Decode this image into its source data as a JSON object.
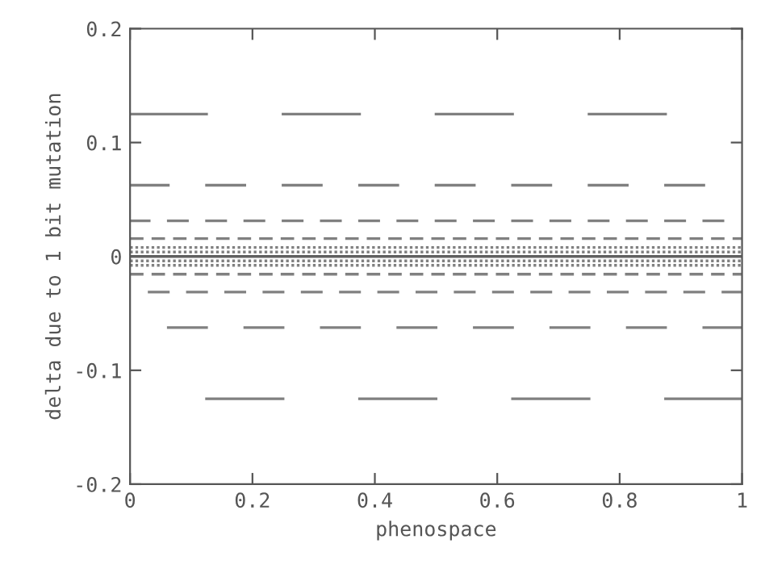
{
  "chart_data": {
    "type": "line",
    "xlabel": "phenospace",
    "ylabel": "delta due to 1 bit mutation",
    "xlim": [
      0,
      1
    ],
    "ylim": [
      -0.2,
      0.2
    ],
    "xticks": [
      0,
      0.2,
      0.4,
      0.6,
      0.8,
      1
    ],
    "yticks": [
      {
        "value": -0.2,
        "label": "-0.2"
      },
      {
        "value": -0.1,
        "label": "-0.1"
      },
      0,
      0.1,
      0.2
    ],
    "grid": false,
    "marker": "none",
    "series": [
      {
        "color": "#808080",
        "line_style": "solid",
        "x": [
          0,
          0.125,
          0.1875,
          0.25,
          0.375,
          0.4375,
          0.5,
          0.625,
          0.6875,
          0.75,
          0.875
        ],
        "values": [
          0.125,
          0.125,
          null,
          0.125,
          0.125,
          null,
          0.125,
          0.125,
          null,
          0.125,
          0.125
        ]
      },
      {
        "color": "#808080",
        "line_style": "solid",
        "x": [
          0.125,
          0.25,
          0.3125,
          0.375,
          0.5,
          0.5625,
          0.625,
          0.75,
          0.8125,
          0.875,
          1
        ],
        "values": [
          -0.125,
          -0.125,
          null,
          -0.125,
          -0.125,
          null,
          -0.125,
          -0.125,
          null,
          -0.125,
          -0.125
        ]
      },
      {
        "color": "#808080",
        "line_style": "solid",
        "x": [
          0,
          0.0625,
          0.09375,
          0.125,
          0.1875,
          0.21875,
          0.25,
          0.3125,
          0.34375,
          0.375,
          0.4375,
          0.46875,
          0.5,
          0.5625,
          0.59375,
          0.625,
          0.6875,
          0.71875,
          0.75,
          0.8125,
          0.84375,
          0.875,
          0.9375
        ],
        "values": [
          0.0625,
          0.0625,
          null,
          0.0625,
          0.0625,
          null,
          0.0625,
          0.0625,
          null,
          0.0625,
          0.0625,
          null,
          0.0625,
          0.0625,
          null,
          0.0625,
          0.0625,
          null,
          0.0625,
          0.0625,
          null,
          0.0625,
          0.0625
        ]
      },
      {
        "color": "#808080",
        "line_style": "solid",
        "x": [
          0.0625,
          0.125,
          0.15625,
          0.1875,
          0.25,
          0.28125,
          0.3125,
          0.375,
          0.40625,
          0.4375,
          0.5,
          0.53125,
          0.5625,
          0.625,
          0.65625,
          0.6875,
          0.75,
          0.78125,
          0.8125,
          0.875,
          0.90625,
          0.9375,
          1
        ],
        "values": [
          -0.0625,
          -0.0625,
          null,
          -0.0625,
          -0.0625,
          null,
          -0.0625,
          -0.0625,
          null,
          -0.0625,
          -0.0625,
          null,
          -0.0625,
          -0.0625,
          null,
          -0.0625,
          -0.0625,
          null,
          -0.0625,
          -0.0625,
          null,
          -0.0625,
          -0.0625
        ]
      },
      {
        "color": "#808080",
        "line_style": "solid",
        "x": [
          0,
          0.03125,
          0.046875,
          0.0625,
          0.09375,
          0.109375,
          0.125,
          0.15625,
          0.171875,
          0.1875,
          0.21875,
          0.234375,
          0.25,
          0.28125,
          0.296875,
          0.3125,
          0.34375,
          0.359375,
          0.375,
          0.40625,
          0.421875,
          0.4375,
          0.46875,
          0.484375,
          0.5,
          0.53125,
          0.546875,
          0.5625,
          0.59375,
          0.609375,
          0.625,
          0.65625,
          0.671875,
          0.6875,
          0.71875,
          0.734375,
          0.75,
          0.78125,
          0.796875,
          0.8125,
          0.84375,
          0.859375,
          0.875,
          0.90625,
          0.921875,
          0.9375,
          0.96875
        ],
        "values": [
          0.03125,
          0.03125,
          null,
          0.03125,
          0.03125,
          null,
          0.03125,
          0.03125,
          null,
          0.03125,
          0.03125,
          null,
          0.03125,
          0.03125,
          null,
          0.03125,
          0.03125,
          null,
          0.03125,
          0.03125,
          null,
          0.03125,
          0.03125,
          null,
          0.03125,
          0.03125,
          null,
          0.03125,
          0.03125,
          null,
          0.03125,
          0.03125,
          null,
          0.03125,
          0.03125,
          null,
          0.03125,
          0.03125,
          null,
          0.03125,
          0.03125,
          null,
          0.03125,
          0.03125,
          null,
          0.03125,
          0.03125
        ]
      },
      {
        "color": "#808080",
        "line_style": "solid",
        "x": [
          0.03125,
          0.0625,
          0.078125,
          0.09375,
          0.125,
          0.140625,
          0.15625,
          0.1875,
          0.203125,
          0.21875,
          0.25,
          0.265625,
          0.28125,
          0.3125,
          0.328125,
          0.34375,
          0.375,
          0.390625,
          0.40625,
          0.4375,
          0.453125,
          0.46875,
          0.5,
          0.515625,
          0.53125,
          0.5625,
          0.578125,
          0.59375,
          0.625,
          0.640625,
          0.65625,
          0.6875,
          0.703125,
          0.71875,
          0.75,
          0.765625,
          0.78125,
          0.8125,
          0.828125,
          0.84375,
          0.875,
          0.890625,
          0.90625,
          0.9375,
          0.953125,
          0.96875,
          1
        ],
        "values": [
          -0.03125,
          -0.03125,
          null,
          -0.03125,
          -0.03125,
          null,
          -0.03125,
          -0.03125,
          null,
          -0.03125,
          -0.03125,
          null,
          -0.03125,
          -0.03125,
          null,
          -0.03125,
          -0.03125,
          null,
          -0.03125,
          -0.03125,
          null,
          -0.03125,
          -0.03125,
          null,
          -0.03125,
          -0.03125,
          null,
          -0.03125,
          -0.03125,
          null,
          -0.03125,
          -0.03125,
          null,
          -0.03125,
          -0.03125,
          null,
          -0.03125,
          -0.03125,
          null,
          -0.03125,
          -0.03125,
          null,
          -0.03125,
          -0.03125,
          null,
          -0.03125,
          -0.03125
        ]
      },
      {
        "color": "#808080",
        "line_style": "dashed",
        "x": [
          0,
          1
        ],
        "values": [
          0.015625,
          0.015625
        ]
      },
      {
        "color": "#808080",
        "line_style": "dashed",
        "x": [
          0,
          1
        ],
        "values": [
          -0.015625,
          -0.015625
        ]
      },
      {
        "color": "#808080",
        "line_style": "dotted",
        "x": [
          0,
          1
        ],
        "values": [
          0.0078125,
          0.0078125
        ]
      },
      {
        "color": "#808080",
        "line_style": "dotted",
        "x": [
          0,
          1
        ],
        "values": [
          -0.0078125,
          -0.0078125
        ]
      },
      {
        "color": "#808080",
        "line_style": "dotted",
        "x": [
          0,
          1
        ],
        "values": [
          0.00390625,
          0.00390625
        ]
      },
      {
        "color": "#808080",
        "line_style": "dotted",
        "x": [
          0,
          1
        ],
        "values": [
          -0.00390625,
          -0.00390625
        ]
      },
      {
        "color": "#606060",
        "line_style": "solid",
        "x": [
          0,
          1
        ],
        "values": [
          0,
          0
        ]
      }
    ]
  }
}
